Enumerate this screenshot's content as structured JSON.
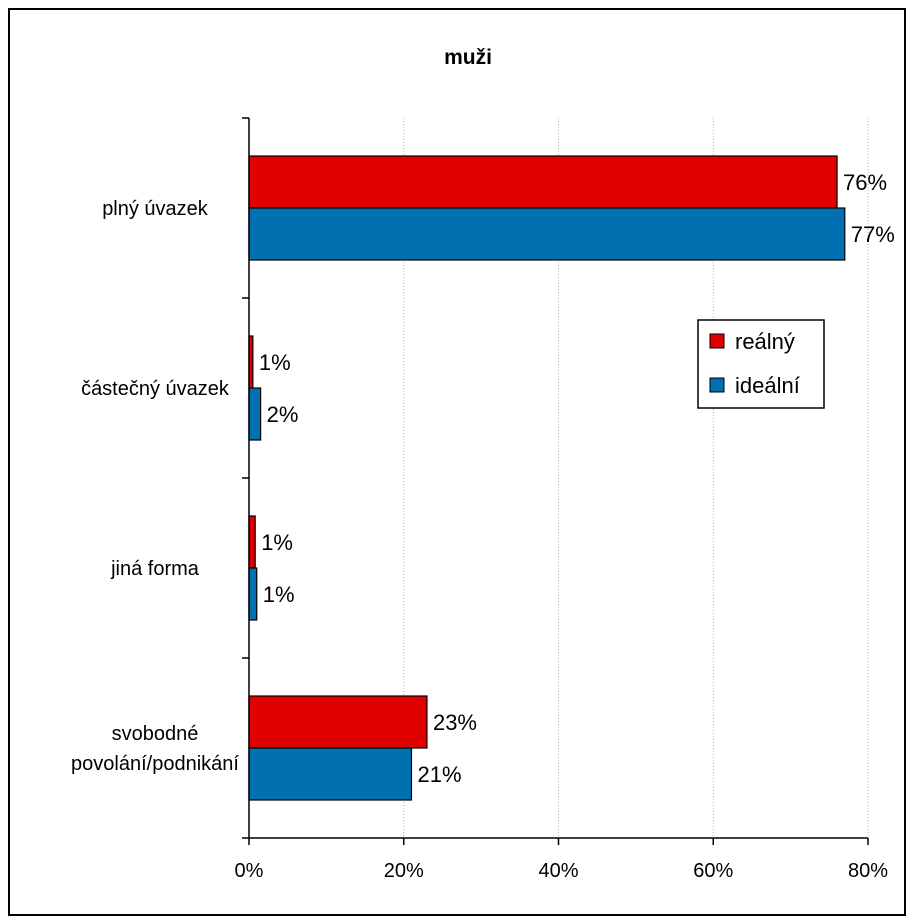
{
  "chart_data": {
    "type": "bar",
    "orientation": "horizontal",
    "title": "muži",
    "categories": [
      [
        "plný úvazek"
      ],
      [
        "částečný úvazek"
      ],
      [
        "jiná forma"
      ],
      [
        "svobodné",
        "povolání/podnikání"
      ]
    ],
    "series": [
      {
        "name": "reálný",
        "color": "#e00000",
        "values": [
          76,
          0.5,
          0.8,
          23
        ],
        "labels": [
          "76%",
          "1%",
          "1%",
          "23%"
        ]
      },
      {
        "name": "ideální",
        "color": "#0070b0",
        "values": [
          77,
          1.5,
          1,
          21
        ],
        "labels": [
          "77%",
          "2%",
          "1%",
          "21%"
        ]
      }
    ],
    "xlim": [
      0,
      80
    ],
    "xticks": [
      0,
      20,
      40,
      60,
      80
    ],
    "xtick_labels": [
      "0%",
      "20%",
      "40%",
      "60%",
      "80%"
    ],
    "grid": "vertical dotted",
    "legend_position": "right"
  }
}
